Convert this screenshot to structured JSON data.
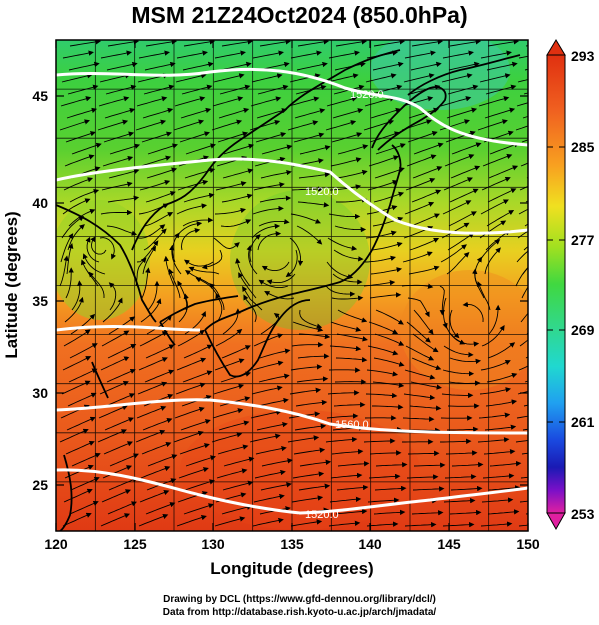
{
  "title": "MSM 21Z24Oct2024 (850.0hPa)",
  "map": {
    "x_axis": {
      "label": "Longitude (degrees)",
      "min": 120,
      "max": 150,
      "ticks": [
        "120",
        "125",
        "130",
        "135",
        "140",
        "145",
        "150"
      ]
    },
    "y_axis": {
      "label": "Latitude  (degrees)",
      "min": 22.5,
      "max": 47.5,
      "ticks": [
        "25",
        "30",
        "35",
        "40",
        "45"
      ]
    },
    "contours": [
      {
        "label": "1520.0"
      },
      {
        "label": "1560.0"
      },
      {
        "label": "1520.0"
      },
      {
        "label": "1520.0"
      }
    ]
  },
  "colorbar": {
    "ticks": [
      "293",
      "285",
      "277",
      "269",
      "261",
      "253"
    ],
    "colors": [
      "#e0209a",
      "#7a10c8",
      "#1a1ab4",
      "#1a4ae0",
      "#20a0f0",
      "#20d8d0",
      "#30d890",
      "#40d840",
      "#a0e020",
      "#f0e020",
      "#f8a020",
      "#f06020",
      "#e03010"
    ]
  },
  "credits": {
    "line1": "Drawing by DCL (https://www.gfd-dennou.org/library/dcl/)",
    "line2": "Data from http://database.rish.kyoto-u.ac.jp/arch/jmadata/"
  }
}
